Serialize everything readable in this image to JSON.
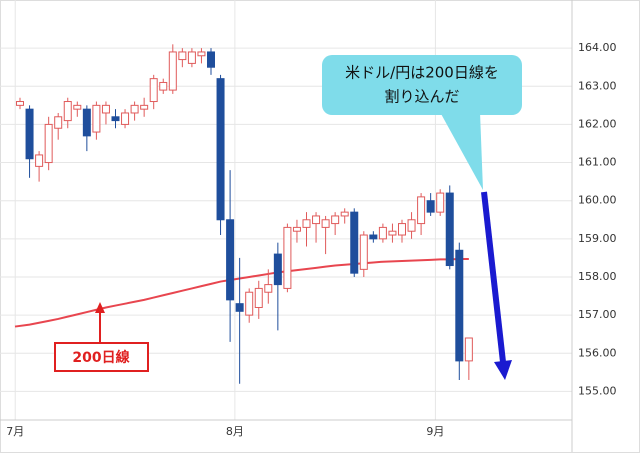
{
  "chart_data": {
    "type": "candlestick",
    "categories": [
      "7月",
      null,
      null,
      null,
      null,
      null,
      null,
      null,
      null,
      null,
      null,
      null,
      null,
      null,
      null,
      null,
      null,
      null,
      null,
      null,
      null,
      null,
      null,
      "8月",
      null,
      null,
      null,
      null,
      null,
      null,
      null,
      null,
      null,
      null,
      null,
      null,
      null,
      null,
      null,
      null,
      null,
      null,
      null,
      null,
      "9月",
      null,
      null,
      null
    ],
    "open": [
      162.5,
      162.4,
      160.9,
      161.0,
      161.9,
      162.1,
      162.4,
      162.4,
      161.8,
      162.3,
      162.2,
      162.0,
      162.3,
      162.4,
      162.6,
      162.9,
      162.9,
      163.7,
      163.6,
      163.8,
      163.9,
      163.2,
      159.5,
      157.3,
      157.0,
      157.2,
      157.6,
      158.6,
      157.7,
      159.2,
      159.3,
      159.4,
      159.3,
      159.4,
      159.6,
      159.7,
      158.2,
      159.1,
      159.0,
      159.1,
      159.1,
      159.2,
      159.4,
      160.0,
      159.7,
      160.2,
      158.7,
      155.8
    ],
    "high": [
      162.7,
      162.5,
      161.3,
      162.2,
      162.3,
      162.7,
      162.6,
      162.5,
      162.6,
      162.6,
      162.4,
      162.4,
      162.6,
      162.7,
      163.3,
      163.2,
      164.1,
      164.0,
      164.0,
      164.0,
      164.0,
      163.3,
      160.8,
      158.5,
      157.7,
      157.9,
      158.2,
      158.9,
      159.4,
      159.5,
      159.7,
      159.7,
      159.6,
      159.7,
      159.8,
      159.8,
      159.2,
      159.2,
      159.4,
      159.4,
      159.5,
      159.7,
      160.2,
      160.2,
      160.3,
      160.4,
      158.9,
      156.4
    ],
    "low": [
      162.4,
      160.6,
      160.5,
      160.8,
      161.6,
      161.9,
      162.2,
      161.3,
      161.6,
      162.0,
      161.9,
      161.9,
      162.1,
      162.2,
      162.4,
      162.8,
      162.8,
      163.5,
      163.5,
      163.6,
      163.3,
      159.1,
      156.3,
      155.2,
      156.8,
      156.9,
      157.3,
      156.6,
      157.6,
      158.9,
      158.8,
      158.9,
      158.6,
      159.1,
      159.4,
      158.0,
      158.0,
      158.9,
      158.9,
      158.9,
      158.9,
      159.0,
      159.1,
      159.6,
      159.6,
      158.2,
      155.3,
      155.3
    ],
    "close": [
      162.6,
      161.1,
      161.2,
      162.0,
      162.2,
      162.6,
      162.5,
      161.7,
      162.5,
      162.5,
      162.1,
      162.3,
      162.5,
      162.5,
      163.2,
      163.1,
      163.9,
      163.9,
      163.9,
      163.9,
      163.5,
      159.5,
      157.4,
      157.1,
      157.6,
      157.7,
      157.8,
      157.8,
      159.3,
      159.3,
      159.5,
      159.6,
      159.5,
      159.6,
      159.7,
      158.1,
      159.1,
      159.0,
      159.3,
      159.2,
      159.4,
      159.5,
      160.1,
      159.7,
      160.2,
      158.3,
      155.8,
      156.4
    ],
    "up_color": "#e05a5a",
    "down_color": "#1f4e9c",
    "series": [
      {
        "name": "200日線",
        "color": "#e8464f",
        "values": [
          156.7,
          156.75,
          156.8,
          156.85,
          156.9,
          156.96,
          157.02,
          157.08,
          157.14,
          157.2,
          157.25,
          157.3,
          157.35,
          157.4,
          157.46,
          157.52,
          157.58,
          157.64,
          157.7,
          157.76,
          157.82,
          157.88,
          157.92,
          157.96,
          158.0,
          158.04,
          158.08,
          158.12,
          158.15,
          158.18,
          158.21,
          158.24,
          158.27,
          158.3,
          158.32,
          158.34,
          158.36,
          158.38,
          158.4,
          158.41,
          158.42,
          158.43,
          158.44,
          158.45,
          158.46,
          158.46,
          158.47,
          158.47
        ]
      }
    ],
    "annotation": [
      "米ドル/円は200日線を",
      "割り込んだ"
    ],
    "ylim": [
      154.25,
      165.0
    ],
    "yticks": [
      {
        "value": 155,
        "label": "155.00"
      },
      {
        "value": 156,
        "label": "156.00"
      },
      {
        "value": 157,
        "label": "157.00"
      },
      {
        "value": 158,
        "label": "158.00"
      },
      {
        "value": 159,
        "label": "159.00"
      },
      {
        "value": 160,
        "label": "160.00"
      },
      {
        "value": 161,
        "label": "161.00"
      },
      {
        "value": 162,
        "label": "162.00"
      },
      {
        "value": 163,
        "label": "163.00"
      },
      {
        "value": 164,
        "label": "164.00"
      }
    ],
    "grid": true
  }
}
